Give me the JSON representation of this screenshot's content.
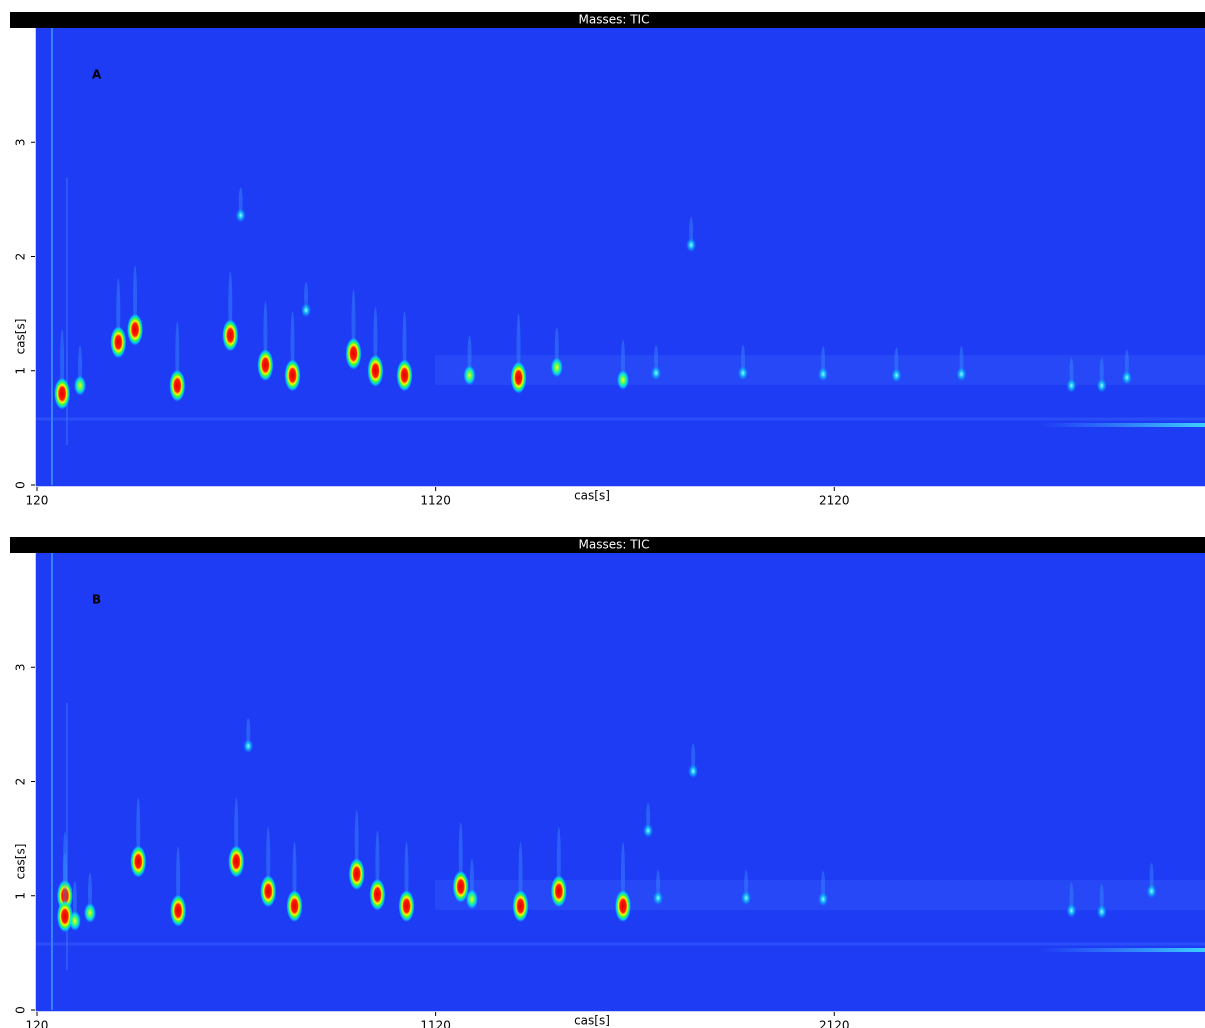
{
  "chart_data": [
    {
      "type": "contour",
      "title": "Masses: TIC",
      "panel_label": "A",
      "xlabel": "cas[s]",
      "ylabel": "cas[s]",
      "background": "#1f3cf5",
      "xlim": [
        115,
        3050
      ],
      "ylim": [
        0,
        4
      ],
      "xticks": [
        120,
        1120,
        2120
      ],
      "yticks": [
        0,
        1,
        2,
        3
      ],
      "x": [
        183,
        228,
        324,
        366,
        472,
        605,
        693,
        761,
        914,
        969,
        1042,
        1205,
        1328,
        1424,
        1590,
        1673,
        1761,
        1891,
        2092,
        2276,
        2439,
        2715,
        2791,
        2854,
        631,
        795
      ],
      "values": [
        0.8,
        0.87,
        1.25,
        1.36,
        0.87,
        1.31,
        1.05,
        0.96,
        1.15,
        1.0,
        0.96,
        0.96,
        0.94,
        1.03,
        0.92,
        0.98,
        2.1,
        0.98,
        0.97,
        0.96,
        0.97,
        0.87,
        0.87,
        0.94,
        2.36,
        1.53
      ],
      "colors": [
        "red",
        "yellow",
        "red",
        "red",
        "red",
        "red",
        "red",
        "red",
        "red",
        "red",
        "red",
        "yellow",
        "red",
        "yellow",
        "yellow",
        "cyan",
        "cyan",
        "cyan",
        "cyan",
        "cyan",
        "cyan",
        "cyan",
        "cyan",
        "cyan",
        "cyan",
        "cyan"
      ]
    },
    {
      "type": "contour",
      "title": "Masses: TIC",
      "panel_label": "B",
      "xlabel": "cas[s]",
      "ylabel": "cas[s]",
      "background": "#1f3cf5",
      "xlim": [
        115,
        3050
      ],
      "ylim": [
        0,
        4
      ],
      "xticks": [
        120,
        1120,
        2120
      ],
      "yticks": [
        0,
        1,
        2,
        3
      ],
      "x": [
        190,
        190,
        253,
        215,
        374,
        474,
        620,
        700,
        766,
        922,
        974,
        1047,
        1183,
        1211,
        1333,
        1429,
        1590,
        1678,
        1766,
        1899,
        1653,
        650,
        2092,
        2715,
        2791,
        2916
      ],
      "values": [
        1.0,
        0.82,
        0.85,
        0.78,
        1.3,
        0.87,
        1.3,
        1.04,
        0.91,
        1.19,
        1.01,
        0.91,
        1.08,
        0.97,
        0.91,
        1.04,
        0.91,
        0.98,
        2.09,
        0.98,
        1.57,
        2.31,
        0.97,
        0.87,
        0.86,
        1.04
      ],
      "colors": [
        "red",
        "red",
        "yellow",
        "yellow",
        "red",
        "red",
        "red",
        "red",
        "red",
        "red",
        "red",
        "red",
        "red",
        "yellow",
        "red",
        "red",
        "red",
        "cyan",
        "cyan",
        "cyan",
        "cyan",
        "cyan",
        "cyan",
        "cyan",
        "cyan",
        "cyan"
      ]
    }
  ]
}
